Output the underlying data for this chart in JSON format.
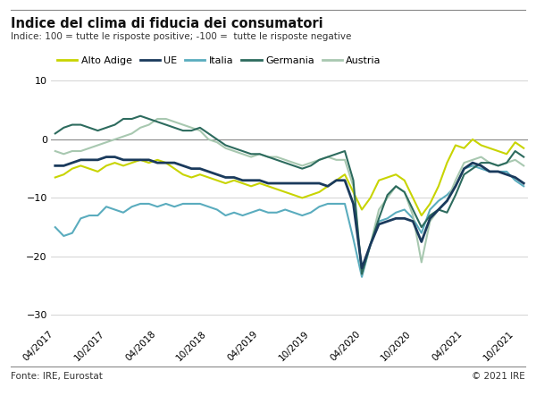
{
  "title": "Indice del clima di fiducia dei consumatori",
  "subtitle": "Indice: 100 = tutte le risposte positive; -100 =  tutte le risposte negative",
  "footer_left": "Fonte: IRE, Eurostat",
  "footer_right": "© 2021 IRE",
  "ylim": [
    -32,
    14
  ],
  "yticks": [
    10,
    0,
    -10,
    -20,
    -30
  ],
  "background_color": "#ffffff",
  "series_order": [
    "Alto Adige",
    "UE",
    "Italia",
    "Germania",
    "Austria"
  ],
  "series": {
    "Alto Adige": {
      "color": "#c8d400",
      "linewidth": 1.5,
      "zorder": 3
    },
    "UE": {
      "color": "#1a3a5c",
      "linewidth": 2.0,
      "zorder": 4
    },
    "Italia": {
      "color": "#5aacbe",
      "linewidth": 1.5,
      "zorder": 2
    },
    "Germania": {
      "color": "#2d6b5e",
      "linewidth": 1.5,
      "zorder": 3
    },
    "Austria": {
      "color": "#a8c8b0",
      "linewidth": 1.5,
      "zorder": 2
    }
  },
  "xtick_labels": [
    "04/2017",
    "10/2017",
    "04/2018",
    "10/2018",
    "04/2019",
    "10/2019",
    "04/2020",
    "10/2020",
    "04/2021",
    "10/2021"
  ],
  "xtick_positions": [
    0,
    6,
    12,
    18,
    24,
    30,
    36,
    42,
    48,
    54
  ],
  "data": {
    "Alto Adige": [
      -6.5,
      -6.0,
      -5.0,
      -4.5,
      -5.0,
      -5.5,
      -4.5,
      -4.0,
      -4.5,
      -4.0,
      -3.5,
      -4.0,
      -3.5,
      -4.0,
      -5.0,
      -6.0,
      -6.5,
      -6.0,
      -6.5,
      -7.0,
      -7.5,
      -7.0,
      -7.5,
      -8.0,
      -7.5,
      -8.0,
      -8.5,
      -9.0,
      -9.5,
      -10.0,
      -9.5,
      -9.0,
      -8.0,
      -7.0,
      -6.0,
      -9.0,
      -12.0,
      -10.0,
      -7.0,
      -6.5,
      -6.0,
      -7.0,
      -10.0,
      -13.0,
      -11.0,
      -8.0,
      -4.0,
      -1.0,
      -1.5,
      0.0,
      -1.0,
      -1.5,
      -2.0,
      -2.5,
      -0.5,
      -1.5
    ],
    "UE": [
      -4.5,
      -4.5,
      -4.0,
      -3.5,
      -3.5,
      -3.5,
      -3.0,
      -3.0,
      -3.5,
      -3.5,
      -3.5,
      -3.5,
      -4.0,
      -4.0,
      -4.0,
      -4.5,
      -5.0,
      -5.0,
      -5.5,
      -6.0,
      -6.5,
      -6.5,
      -7.0,
      -7.0,
      -7.0,
      -7.5,
      -7.5,
      -7.5,
      -7.5,
      -7.5,
      -7.5,
      -7.5,
      -8.0,
      -7.0,
      -7.0,
      -11.0,
      -22.0,
      -18.0,
      -14.5,
      -14.0,
      -13.5,
      -13.5,
      -14.0,
      -17.5,
      -13.5,
      -12.0,
      -10.5,
      -8.0,
      -5.0,
      -4.0,
      -4.5,
      -5.5,
      -5.5,
      -6.0,
      -6.5,
      -7.5
    ],
    "Italia": [
      -15.0,
      -16.5,
      -16.0,
      -13.5,
      -13.0,
      -13.0,
      -11.5,
      -12.0,
      -12.5,
      -11.5,
      -11.0,
      -11.0,
      -11.5,
      -11.0,
      -11.5,
      -11.0,
      -11.0,
      -11.0,
      -11.5,
      -12.0,
      -13.0,
      -12.5,
      -13.0,
      -12.5,
      -12.0,
      -12.5,
      -12.5,
      -12.0,
      -12.5,
      -13.0,
      -12.5,
      -11.5,
      -11.0,
      -11.0,
      -11.0,
      -17.0,
      -23.5,
      -18.0,
      -14.0,
      -13.5,
      -12.5,
      -12.0,
      -13.5,
      -16.0,
      -12.0,
      -10.5,
      -9.5,
      -8.0,
      -5.0,
      -4.5,
      -5.0,
      -5.5,
      -5.5,
      -5.5,
      -7.0,
      -8.0
    ],
    "Germania": [
      1.0,
      2.0,
      2.5,
      2.5,
      2.0,
      1.5,
      2.0,
      2.5,
      3.5,
      3.5,
      4.0,
      3.5,
      3.0,
      2.5,
      2.0,
      1.5,
      1.5,
      2.0,
      1.0,
      0.0,
      -1.0,
      -1.5,
      -2.0,
      -2.5,
      -2.5,
      -3.0,
      -3.5,
      -4.0,
      -4.5,
      -5.0,
      -4.5,
      -3.5,
      -3.0,
      -2.5,
      -2.0,
      -7.0,
      -23.0,
      -18.0,
      -13.5,
      -9.5,
      -8.0,
      -9.0,
      -12.0,
      -15.0,
      -13.0,
      -12.0,
      -12.5,
      -9.5,
      -6.0,
      -5.0,
      -4.0,
      -4.0,
      -4.5,
      -4.0,
      -2.0,
      -3.0
    ],
    "Austria": [
      -2.0,
      -2.5,
      -2.0,
      -2.0,
      -1.5,
      -1.0,
      -0.5,
      0.0,
      0.5,
      1.0,
      2.0,
      2.5,
      3.5,
      3.5,
      3.0,
      2.5,
      2.0,
      1.5,
      0.0,
      -0.5,
      -1.5,
      -2.0,
      -2.5,
      -3.0,
      -2.5,
      -3.0,
      -3.0,
      -3.5,
      -4.0,
      -4.5,
      -4.0,
      -3.5,
      -3.0,
      -3.5,
      -3.5,
      -8.0,
      -23.0,
      -18.0,
      -12.0,
      -10.0,
      -8.0,
      -9.0,
      -13.0,
      -21.0,
      -14.0,
      -12.0,
      -10.5,
      -7.0,
      -4.0,
      -3.5,
      -3.0,
      -4.0,
      -4.5,
      -4.0,
      -3.5,
      -4.5
    ]
  }
}
